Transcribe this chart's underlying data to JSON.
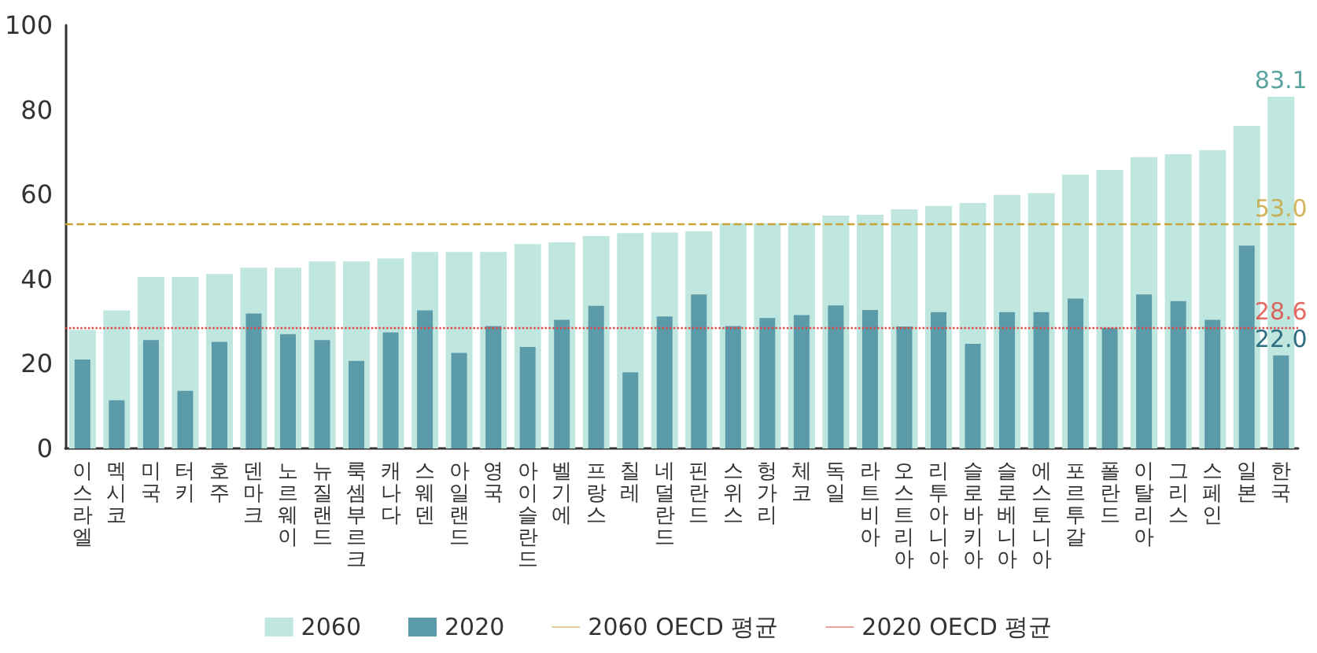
{
  "chart_data": {
    "type": "bar",
    "categories": [
      "이스라엘",
      "멕시코",
      "미국",
      "터키",
      "호주",
      "덴마크",
      "노르웨이",
      "뉴질랜드",
      "룩셈부르크",
      "캐나다",
      "스웨덴",
      "아일랜드",
      "영국",
      "아이슬란드",
      "벨기에",
      "프랑스",
      "칠레",
      "네덜란드",
      "핀란드",
      "스위스",
      "헝가리",
      "체코",
      "독일",
      "라트비아",
      "오스트리아",
      "리투아니아",
      "슬로바키아",
      "슬로베니아",
      "에스토니아",
      "포르투갈",
      "폴란드",
      "이탈리아",
      "그리스",
      "스페인",
      "일본",
      "한국"
    ],
    "series": [
      {
        "name": "2060",
        "color": "#bfe6df",
        "values": [
          28,
          32.6,
          40.5,
          40.5,
          41.2,
          42.7,
          42.7,
          44.2,
          44.2,
          44.9,
          46.4,
          46.4,
          46.4,
          48.3,
          48.7,
          50.2,
          50.9,
          51,
          51.3,
          53.2,
          53.2,
          53.3,
          55,
          55.2,
          56.5,
          57.3,
          58,
          59.9,
          60.3,
          64.7,
          65.8,
          68.8,
          69.5,
          70.5,
          76.2,
          83.1
        ],
        "value_labels": [
          null,
          null,
          null,
          null,
          null,
          null,
          null,
          null,
          null,
          null,
          null,
          null,
          null,
          null,
          null,
          null,
          null,
          null,
          null,
          null,
          null,
          null,
          null,
          null,
          null,
          null,
          null,
          null,
          null,
          null,
          null,
          null,
          null,
          null,
          null,
          "83.1"
        ]
      },
      {
        "name": "2020",
        "color": "#5b9aa9",
        "values": [
          21,
          11.4,
          25.6,
          13.6,
          25.2,
          31.9,
          27,
          25.6,
          20.7,
          27.4,
          32.6,
          22.6,
          28.9,
          24,
          30.4,
          33.7,
          18,
          31.2,
          36.4,
          28.9,
          30.8,
          31.5,
          33.8,
          32.7,
          28.8,
          32.2,
          24.7,
          32.2,
          32.2,
          35.4,
          28.5,
          36.4,
          34.8,
          30.4,
          47.9,
          22.0
        ],
        "value_labels": [
          null,
          null,
          null,
          null,
          null,
          null,
          null,
          null,
          null,
          null,
          null,
          null,
          null,
          null,
          null,
          null,
          null,
          null,
          null,
          null,
          null,
          null,
          null,
          null,
          null,
          null,
          null,
          null,
          null,
          null,
          null,
          null,
          null,
          null,
          null,
          "22.0"
        ]
      }
    ],
    "ylim": [
      0,
      100
    ],
    "yticks": [
      0,
      20,
      40,
      60,
      80,
      100
    ],
    "grid": false,
    "legend": "bottom",
    "ref_lines": [
      {
        "axis": "y",
        "value": 53,
        "label": "2060 OECD 평균",
        "color": "#c9a236",
        "line_style": "dashed"
      },
      {
        "axis": "y",
        "value": 28.6,
        "label": "2020 OECD 평균",
        "color": "#e0443c",
        "line_style": "dotted"
      }
    ],
    "annotations": [
      {
        "text": "53.0",
        "x": "한국",
        "y": 53
      },
      {
        "text": "28.6",
        "x": "한국",
        "y": 28.6
      }
    ]
  }
}
